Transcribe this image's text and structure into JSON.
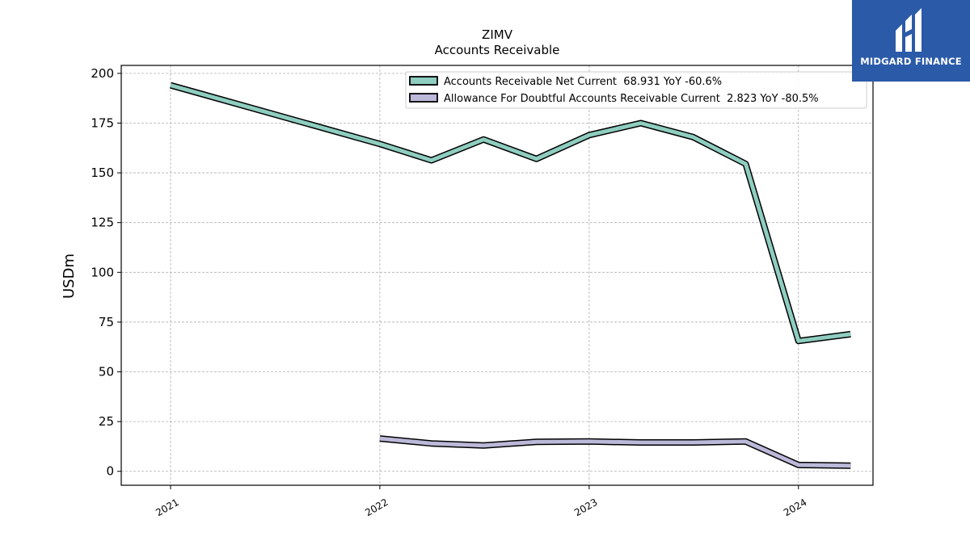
{
  "chart_data": {
    "type": "line",
    "title": "ZIMV",
    "subtitle": "Accounts Receivable",
    "ylabel": "USDm",
    "xlabel": "",
    "x_ticks": [
      "2021",
      "2022",
      "2023",
      "2024"
    ],
    "y_ticks": [
      0,
      25,
      50,
      75,
      100,
      125,
      150,
      175,
      200
    ],
    "ylim": [
      -7,
      204
    ],
    "xlim": [
      "2020-10-07",
      "2024-05-10"
    ],
    "grid": true,
    "legend_position": "top-right",
    "series": [
      {
        "name": "Accounts Receivable Net Current  68.931 YoY -60.6%",
        "color": "#8ecdc0",
        "points": [
          {
            "x": "2021-01-01",
            "y": 194
          },
          {
            "x": "2022-01-01",
            "y": 164.5
          },
          {
            "x": "2022-04-01",
            "y": 156.3
          },
          {
            "x": "2022-07-01",
            "y": 166.8
          },
          {
            "x": "2022-10-01",
            "y": 157
          },
          {
            "x": "2023-01-01",
            "y": 169
          },
          {
            "x": "2023-04-01",
            "y": 175
          },
          {
            "x": "2023-07-01",
            "y": 168
          },
          {
            "x": "2023-10-01",
            "y": 154.5
          },
          {
            "x": "2024-01-01",
            "y": 65.5
          },
          {
            "x": "2024-04-01",
            "y": 68.931
          }
        ]
      },
      {
        "name": "Allowance For Doubtful Accounts Receivable Current  2.823 YoY -80.5%",
        "color": "#bcb8d9",
        "points": [
          {
            "x": "2022-01-01",
            "y": 16.5
          },
          {
            "x": "2022-04-01",
            "y": 14
          },
          {
            "x": "2022-07-01",
            "y": 13
          },
          {
            "x": "2022-10-01",
            "y": 14.8
          },
          {
            "x": "2023-01-01",
            "y": 15
          },
          {
            "x": "2023-04-01",
            "y": 14.5
          },
          {
            "x": "2023-07-01",
            "y": 14.5
          },
          {
            "x": "2023-10-01",
            "y": 15
          },
          {
            "x": "2024-01-01",
            "y": 3.2
          },
          {
            "x": "2024-04-01",
            "y": 2.823
          }
        ]
      }
    ]
  },
  "logo": {
    "text": "MIDGARD FINANCE",
    "background": "#2b5aa8"
  }
}
